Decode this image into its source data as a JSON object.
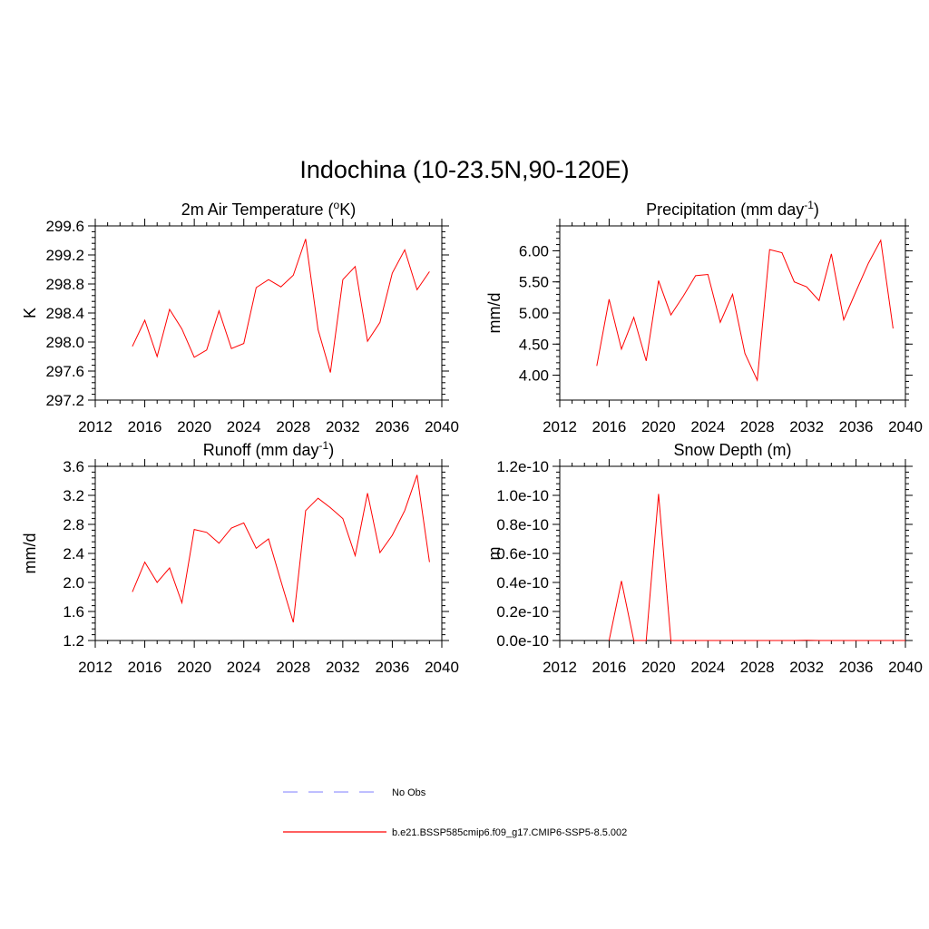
{
  "title": "Indochina (10-23.5N,90-120E)",
  "colors": {
    "model_line": "#ff0000",
    "obs_line": "#9999ff"
  },
  "legend": {
    "obs_label": "No Obs",
    "model_label": "b.e21.BSSP585cmip6.f09_g17.CMIP6-SSP5-8.5.002"
  },
  "chart_data": [
    {
      "type": "line",
      "title": "2m Air Temperature",
      "title_unit": "(oK)",
      "ylabel": "K",
      "xlim": [
        2012,
        2040
      ],
      "ylim": [
        297.2,
        299.6
      ],
      "xticks": [
        2012,
        2016,
        2020,
        2024,
        2028,
        2032,
        2036,
        2040
      ],
      "yticks": [
        297.2,
        297.6,
        298.0,
        298.4,
        298.8,
        299.2,
        299.6
      ],
      "ytick_labels": [
        "297.2",
        "297.6",
        "298.0",
        "298.4",
        "298.8",
        "299.2",
        "299.6"
      ],
      "series": [
        {
          "x": [
            2015,
            2016,
            2017,
            2018,
            2019,
            2020,
            2021,
            2022,
            2023,
            2024,
            2025,
            2026,
            2027,
            2028,
            2029,
            2030,
            2031,
            2032,
            2033,
            2034,
            2035,
            2036,
            2037,
            2038,
            2039
          ],
          "y": [
            297.94,
            298.3,
            297.8,
            298.45,
            298.18,
            297.79,
            297.89,
            298.43,
            297.91,
            297.98,
            298.75,
            298.86,
            298.76,
            298.92,
            299.42,
            298.17,
            297.58,
            298.86,
            299.04,
            298.01,
            298.27,
            298.95,
            299.27,
            298.72,
            298.97
          ]
        }
      ]
    },
    {
      "type": "line",
      "title": "Precipitation",
      "title_unit": "(mm day-1)",
      "ylabel": "mm/d",
      "xlim": [
        2012,
        2040
      ],
      "ylim": [
        3.6,
        6.4
      ],
      "xticks": [
        2012,
        2016,
        2020,
        2024,
        2028,
        2032,
        2036,
        2040
      ],
      "yticks": [
        4.0,
        4.5,
        5.0,
        5.5,
        6.0
      ],
      "ytick_labels": [
        "4.00",
        "4.50",
        "5.00",
        "5.50",
        "6.00"
      ],
      "series": [
        {
          "x": [
            2015,
            2016,
            2017,
            2018,
            2019,
            2020,
            2021,
            2022,
            2023,
            2024,
            2025,
            2026,
            2027,
            2028,
            2029,
            2030,
            2031,
            2032,
            2033,
            2034,
            2035,
            2036,
            2037,
            2038,
            2039
          ],
          "y": [
            4.15,
            5.22,
            4.42,
            4.93,
            4.23,
            5.52,
            4.97,
            5.27,
            5.6,
            5.62,
            4.85,
            5.3,
            4.35,
            3.92,
            6.02,
            5.97,
            5.5,
            5.42,
            5.2,
            5.95,
            4.89,
            5.35,
            5.8,
            6.17,
            4.75
          ]
        }
      ]
    },
    {
      "type": "line",
      "title": "Runoff",
      "title_unit": "(mm day-1)",
      "ylabel": "mm/d",
      "xlim": [
        2012,
        2040
      ],
      "ylim": [
        1.2,
        3.6
      ],
      "xticks": [
        2012,
        2016,
        2020,
        2024,
        2028,
        2032,
        2036,
        2040
      ],
      "yticks": [
        1.2,
        1.6,
        2.0,
        2.4,
        2.8,
        3.2,
        3.6
      ],
      "ytick_labels": [
        "1.2",
        "1.6",
        "2.0",
        "2.4",
        "2.8",
        "3.2",
        "3.6"
      ],
      "series": [
        {
          "x": [
            2015,
            2016,
            2017,
            2018,
            2019,
            2020,
            2021,
            2022,
            2023,
            2024,
            2025,
            2026,
            2027,
            2028,
            2029,
            2030,
            2031,
            2032,
            2033,
            2034,
            2035,
            2036,
            2037,
            2038,
            2039
          ],
          "y": [
            1.87,
            2.28,
            2.0,
            2.2,
            1.72,
            2.73,
            2.69,
            2.54,
            2.75,
            2.82,
            2.47,
            2.6,
            2.02,
            1.45,
            2.99,
            3.16,
            3.03,
            2.88,
            2.37,
            3.23,
            2.41,
            2.65,
            2.99,
            3.48,
            2.28
          ]
        }
      ]
    },
    {
      "type": "line",
      "title": "Snow Depth",
      "title_unit": "(m)",
      "ylabel": "m",
      "xlim": [
        2012,
        2040
      ],
      "ylim": [
        0,
        1.2e-10
      ],
      "xticks": [
        2012,
        2016,
        2020,
        2024,
        2028,
        2032,
        2036,
        2040
      ],
      "yticks": [
        0,
        2e-11,
        4e-11,
        6e-11,
        8e-11,
        1e-10,
        1.2e-10
      ],
      "ytick_labels": [
        "0.0e-10",
        "0.2e-10",
        "0.4e-10",
        "0.6e-10",
        "0.8e-10",
        "1.0e-10",
        "1.2e-10"
      ],
      "series": [
        {
          "x": [
            2016,
            2017,
            2018,
            2019,
            2020,
            2021,
            2022,
            2023,
            2024,
            2025,
            2026,
            2027,
            2028,
            2029,
            2030,
            2031,
            2032,
            2033,
            2034,
            2035,
            2036,
            2037,
            2038,
            2039,
            2040
          ],
          "y": [
            0,
            4.1e-11,
            0,
            0,
            1.01e-10,
            0,
            0,
            0,
            0,
            0,
            0,
            0,
            0,
            0,
            0,
            0,
            2e-13,
            0,
            0,
            0,
            0,
            0,
            0,
            0,
            0
          ]
        }
      ]
    }
  ]
}
